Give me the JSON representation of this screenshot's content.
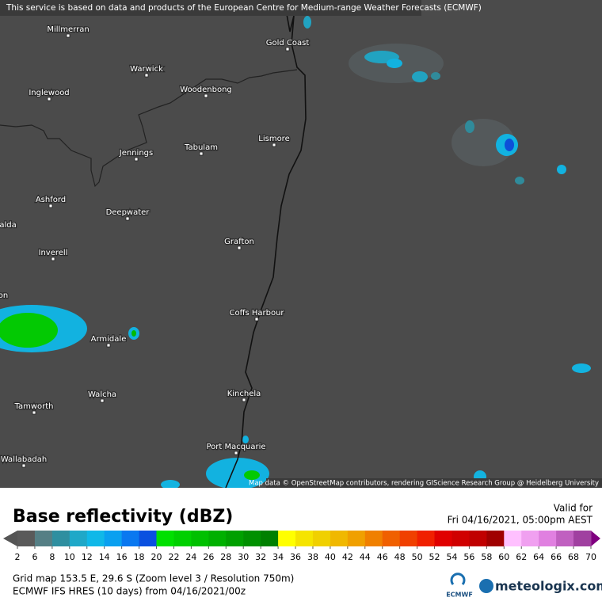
{
  "banner": "This service is based on data and products of the European Centre for Medium-range Weather Forecasts (ECMWF)",
  "places": [
    "Millmerran",
    "Gold Coast",
    "Warwick",
    "Inglewood",
    "Woodenbong",
    "Lismore",
    "Tabulam",
    "Jennings",
    "Ashford",
    "Deepwater",
    "alda",
    "Grafton",
    "Inverell",
    "on",
    "Coffs Harbour",
    "Armidale",
    "Kinchela",
    "Walcha",
    "Tamworth",
    "Port Macquarie",
    "Wallabadah"
  ],
  "attribution": "Map data © OpenStreetMap contributors, rendering GIScience Research Group @ Heidelberg University",
  "legend": {
    "title": "Base reflectivity (dBZ)",
    "valid_label": "Valid for",
    "valid_time": "Fri 04/16/2021, 05:00pm AEST",
    "labels": [
      2,
      6,
      8,
      10,
      12,
      14,
      16,
      18,
      20,
      22,
      24,
      26,
      28,
      30,
      32,
      34,
      36,
      38,
      40,
      42,
      44,
      46,
      48,
      50,
      52,
      54,
      56,
      58,
      60,
      62,
      64,
      66,
      68,
      70
    ],
    "below_color": "#555555",
    "above_color": "#800080",
    "colors": [
      "#5a5a5a",
      "#557f85",
      "#2f8fa0",
      "#1fa8c8",
      "#10b8e8",
      "#0aa0f0",
      "#0a78f0",
      "#0a50e0",
      "#00e000",
      "#00d000",
      "#00c000",
      "#00b000",
      "#00a000",
      "#009000",
      "#008000",
      "#ffff00",
      "#f5e400",
      "#f0d000",
      "#f0b800",
      "#f0a000",
      "#f08000",
      "#f06000",
      "#f04000",
      "#f02000",
      "#e00000",
      "#d00000",
      "#c00000",
      "#a00000",
      "#ffc0ff",
      "#f0a0f0",
      "#e080e0",
      "#c060c0",
      "#a040a0"
    ]
  },
  "footer": {
    "grid": "Grid map 153.5 E, 29.6 S (Zoom level 3 / Resolution 750m)",
    "model": "ECMWF IFS HRES (10 days) from 04/16/2021/00z",
    "ecmwf_logo": "ECMWF",
    "brand": "meteologix.com"
  }
}
